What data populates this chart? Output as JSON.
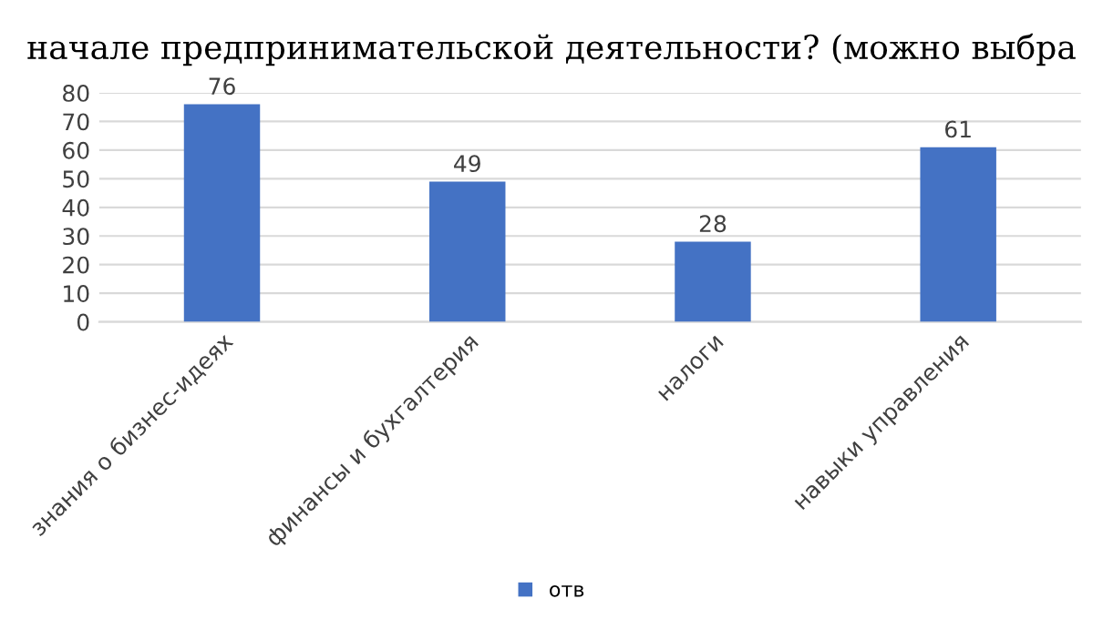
{
  "chart_data": {
    "type": "bar",
    "title": "начале предпринимательской деятельности? (можно выбра",
    "categories": [
      "знания о бизнес-идеях",
      "финансы и бухгалтерия",
      "налоги",
      "навыки управления"
    ],
    "series": [
      {
        "name": "отв",
        "color": "#4472c4",
        "values": [
          76,
          49,
          28,
          61
        ]
      }
    ],
    "ylim": [
      0,
      80
    ],
    "yticks": [
      0,
      10,
      20,
      30,
      40,
      50,
      60,
      70,
      80
    ],
    "grid": "y",
    "legend": "bottom",
    "data_labels": true
  }
}
